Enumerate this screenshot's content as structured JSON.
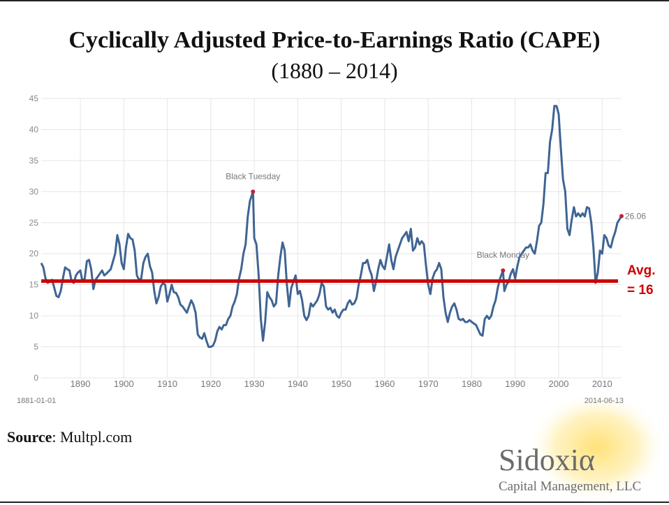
{
  "chart_data": {
    "type": "line",
    "title": "Cyclically Adjusted Price-to-Earnings Ratio (CAPE)",
    "subtitle": "(1880 – 2014)",
    "x": [
      1881,
      1881.5,
      1882,
      1882.5,
      1883,
      1883.5,
      1884,
      1884.5,
      1885,
      1885.5,
      1886,
      1886.5,
      1887,
      1887.5,
      1888,
      1888.5,
      1889,
      1889.5,
      1890,
      1890.5,
      1891,
      1891.5,
      1892,
      1892.5,
      1893,
      1893.5,
      1894,
      1895,
      1895.5,
      1896,
      1897,
      1898,
      1898.5,
      1899,
      1899.5,
      1900,
      1900.5,
      1901,
      1901.5,
      1902,
      1902.5,
      1903,
      1903.5,
      1904,
      1904.5,
      1905,
      1905.5,
      1906,
      1906.5,
      1907,
      1907.5,
      1908,
      1908.5,
      1909,
      1909.5,
      1910,
      1910.5,
      1911,
      1911.5,
      1912,
      1912.5,
      1913,
      1913.5,
      1914,
      1914.5,
      1915,
      1915.5,
      1916,
      1916.5,
      1917,
      1917.5,
      1918,
      1918.5,
      1919,
      1919.5,
      1920,
      1920.5,
      1921,
      1921.5,
      1922,
      1922.5,
      1923,
      1923.5,
      1924,
      1924.5,
      1925,
      1925.5,
      1926,
      1926.5,
      1927,
      1927.5,
      1928,
      1928.5,
      1929,
      1929.7,
      1930,
      1930.5,
      1931,
      1931.5,
      1932,
      1932.5,
      1933,
      1933.5,
      1934,
      1934.5,
      1935,
      1935.5,
      1936,
      1936.5,
      1937,
      1937.5,
      1938,
      1938.5,
      1939,
      1939.5,
      1940,
      1940.5,
      1941,
      1941.5,
      1942,
      1942.5,
      1943,
      1943.5,
      1944,
      1944.5,
      1945,
      1945.5,
      1946,
      1946.5,
      1947,
      1947.5,
      1948,
      1948.5,
      1949,
      1949.5,
      1950,
      1950.5,
      1951,
      1951.5,
      1952,
      1952.5,
      1953,
      1953.5,
      1954,
      1954.5,
      1955,
      1955.5,
      1956,
      1956.5,
      1957,
      1957.5,
      1958,
      1958.5,
      1959,
      1959.5,
      1960,
      1960.5,
      1961,
      1961.5,
      1962,
      1962.5,
      1963,
      1963.5,
      1964,
      1964.5,
      1965,
      1965.5,
      1966,
      1966.5,
      1967,
      1967.5,
      1968,
      1968.5,
      1969,
      1969.5,
      1970,
      1970.5,
      1971,
      1971.5,
      1972,
      1972.5,
      1973,
      1973.5,
      1974,
      1974.5,
      1975,
      1975.5,
      1976,
      1976.5,
      1977,
      1977.5,
      1978,
      1978.5,
      1979,
      1979.5,
      1980,
      1981,
      1982,
      1982.5,
      1983,
      1983.5,
      1984,
      1984.5,
      1985,
      1985.5,
      1986,
      1986.5,
      1987.2,
      1987.5,
      1988,
      1988.5,
      1989,
      1989.5,
      1990,
      1990.5,
      1991,
      1991.5,
      1992,
      1992.5,
      1993,
      1993.5,
      1994,
      1994.5,
      1995,
      1995.5,
      1996,
      1996.5,
      1997,
      1997.5,
      1998,
      1998.5,
      1999,
      1999.5,
      2000,
      2000.5,
      2001,
      2001.5,
      2002,
      2002.5,
      2003,
      2003.5,
      2004,
      2004.5,
      2005,
      2005.5,
      2006,
      2006.5,
      2007,
      2007.5,
      2008,
      2008.5,
      2009,
      2009.5,
      2010,
      2010.5,
      2011,
      2011.5,
      2012,
      2012.5,
      2013,
      2013.5,
      2014.45
    ],
    "series": [
      {
        "name": "CAPE",
        "color": "#3f6494",
        "values": [
          18.5,
          17.8,
          16,
          15.3,
          15.5,
          15.8,
          14.5,
          13.2,
          13,
          14,
          16,
          17.8,
          17.5,
          17.3,
          15.5,
          15.3,
          16.5,
          17,
          17.3,
          15.5,
          16,
          18.8,
          19,
          17.5,
          14.3,
          15.8,
          16.3,
          17.3,
          16.5,
          16.8,
          17.5,
          20,
          23,
          21.5,
          18.5,
          17.5,
          21,
          23.2,
          22.5,
          22.3,
          20.5,
          16.5,
          15.8,
          16,
          18.5,
          19.5,
          20,
          18,
          17,
          14,
          12,
          13,
          14.7,
          15.3,
          15,
          12.3,
          13.5,
          15,
          13.8,
          13.7,
          13,
          11.8,
          11.5,
          11,
          10.5,
          11.5,
          12.5,
          11.8,
          10.5,
          7,
          6.5,
          6.3,
          7.2,
          6,
          5,
          5,
          5.2,
          6,
          7.5,
          8.2,
          7.8,
          8.5,
          8.5,
          9.5,
          10,
          11.5,
          12.3,
          13.5,
          16,
          17.5,
          20,
          21.5,
          26,
          28.5,
          30,
          22.5,
          21.5,
          16.5,
          9.5,
          6,
          9,
          13.8,
          13,
          12.5,
          11.5,
          12,
          16.5,
          19.5,
          21.8,
          20.5,
          15,
          11.5,
          14.5,
          15.5,
          16.5,
          13.5,
          14,
          12.5,
          10,
          9.3,
          10,
          12,
          11.5,
          12,
          12.5,
          13.5,
          15.3,
          14.7,
          11.5,
          11,
          11.3,
          10.5,
          11,
          10,
          9.7,
          10.5,
          11,
          11,
          12,
          12.5,
          11.8,
          12,
          12.8,
          15,
          16.5,
          18.5,
          18.5,
          19,
          17.5,
          16.5,
          14,
          15.5,
          17.5,
          19,
          18,
          17.5,
          19.5,
          21.5,
          19,
          17.5,
          19.5,
          20.5,
          21.5,
          22.5,
          23,
          23.5,
          22,
          24,
          20.5,
          21,
          22.5,
          21.5,
          22,
          21.5,
          18,
          15,
          13.5,
          16,
          17,
          17.5,
          18.5,
          17.5,
          13,
          10.5,
          9,
          10.5,
          11.5,
          12,
          11,
          9.5,
          9.3,
          9.5,
          9,
          9,
          9.3,
          9,
          8.5,
          7,
          6.8,
          9.5,
          10,
          9.5,
          10,
          11.5,
          12.5,
          14.5,
          16,
          17.3,
          14,
          15,
          15.5,
          16.8,
          17.5,
          16,
          18,
          19.5,
          20,
          20.5,
          21,
          21,
          21.5,
          20.5,
          20,
          22,
          24.5,
          25,
          28,
          33,
          33,
          38,
          40,
          43.8,
          43.8,
          42.5,
          37,
          32,
          30,
          24,
          23,
          25.5,
          27.5,
          26,
          26.5,
          26,
          26.5,
          26,
          27.5,
          27.3,
          25,
          21,
          15.3,
          17,
          20.5,
          20,
          23,
          22.5,
          21.3,
          21,
          22.5,
          23.5,
          25,
          26.06
        ]
      }
    ],
    "x_start_label": "1881-01-01",
    "x_end_label": "2014-06-13",
    "xlim": [
      1881,
      2014.45
    ],
    "xticks": [
      1890,
      1900,
      1910,
      1920,
      1930,
      1940,
      1950,
      1960,
      1970,
      1980,
      1990,
      2000,
      2010
    ],
    "ylim": [
      0,
      45
    ],
    "yticks": [
      0,
      5,
      10,
      15,
      20,
      25,
      30,
      35,
      40,
      45
    ],
    "grid": true,
    "annotations": [
      {
        "text": "Black Tuesday",
        "x": 1929.7,
        "y": 30
      },
      {
        "text": "Black Monday",
        "x": 1987.2,
        "y": 17.3
      },
      {
        "text": "26.06",
        "x": 2014.45,
        "y": 26.06
      }
    ],
    "marker_color": "#c0213a",
    "avg_line": {
      "value": 15.6,
      "color": "#cc0000",
      "label": [
        "Avg.",
        "= 16"
      ]
    }
  },
  "source": {
    "label": "Source",
    "text": ": Multpl.com"
  },
  "logo": {
    "name": "Sidoxiα",
    "subtitle": "Capital Management, LLC"
  }
}
